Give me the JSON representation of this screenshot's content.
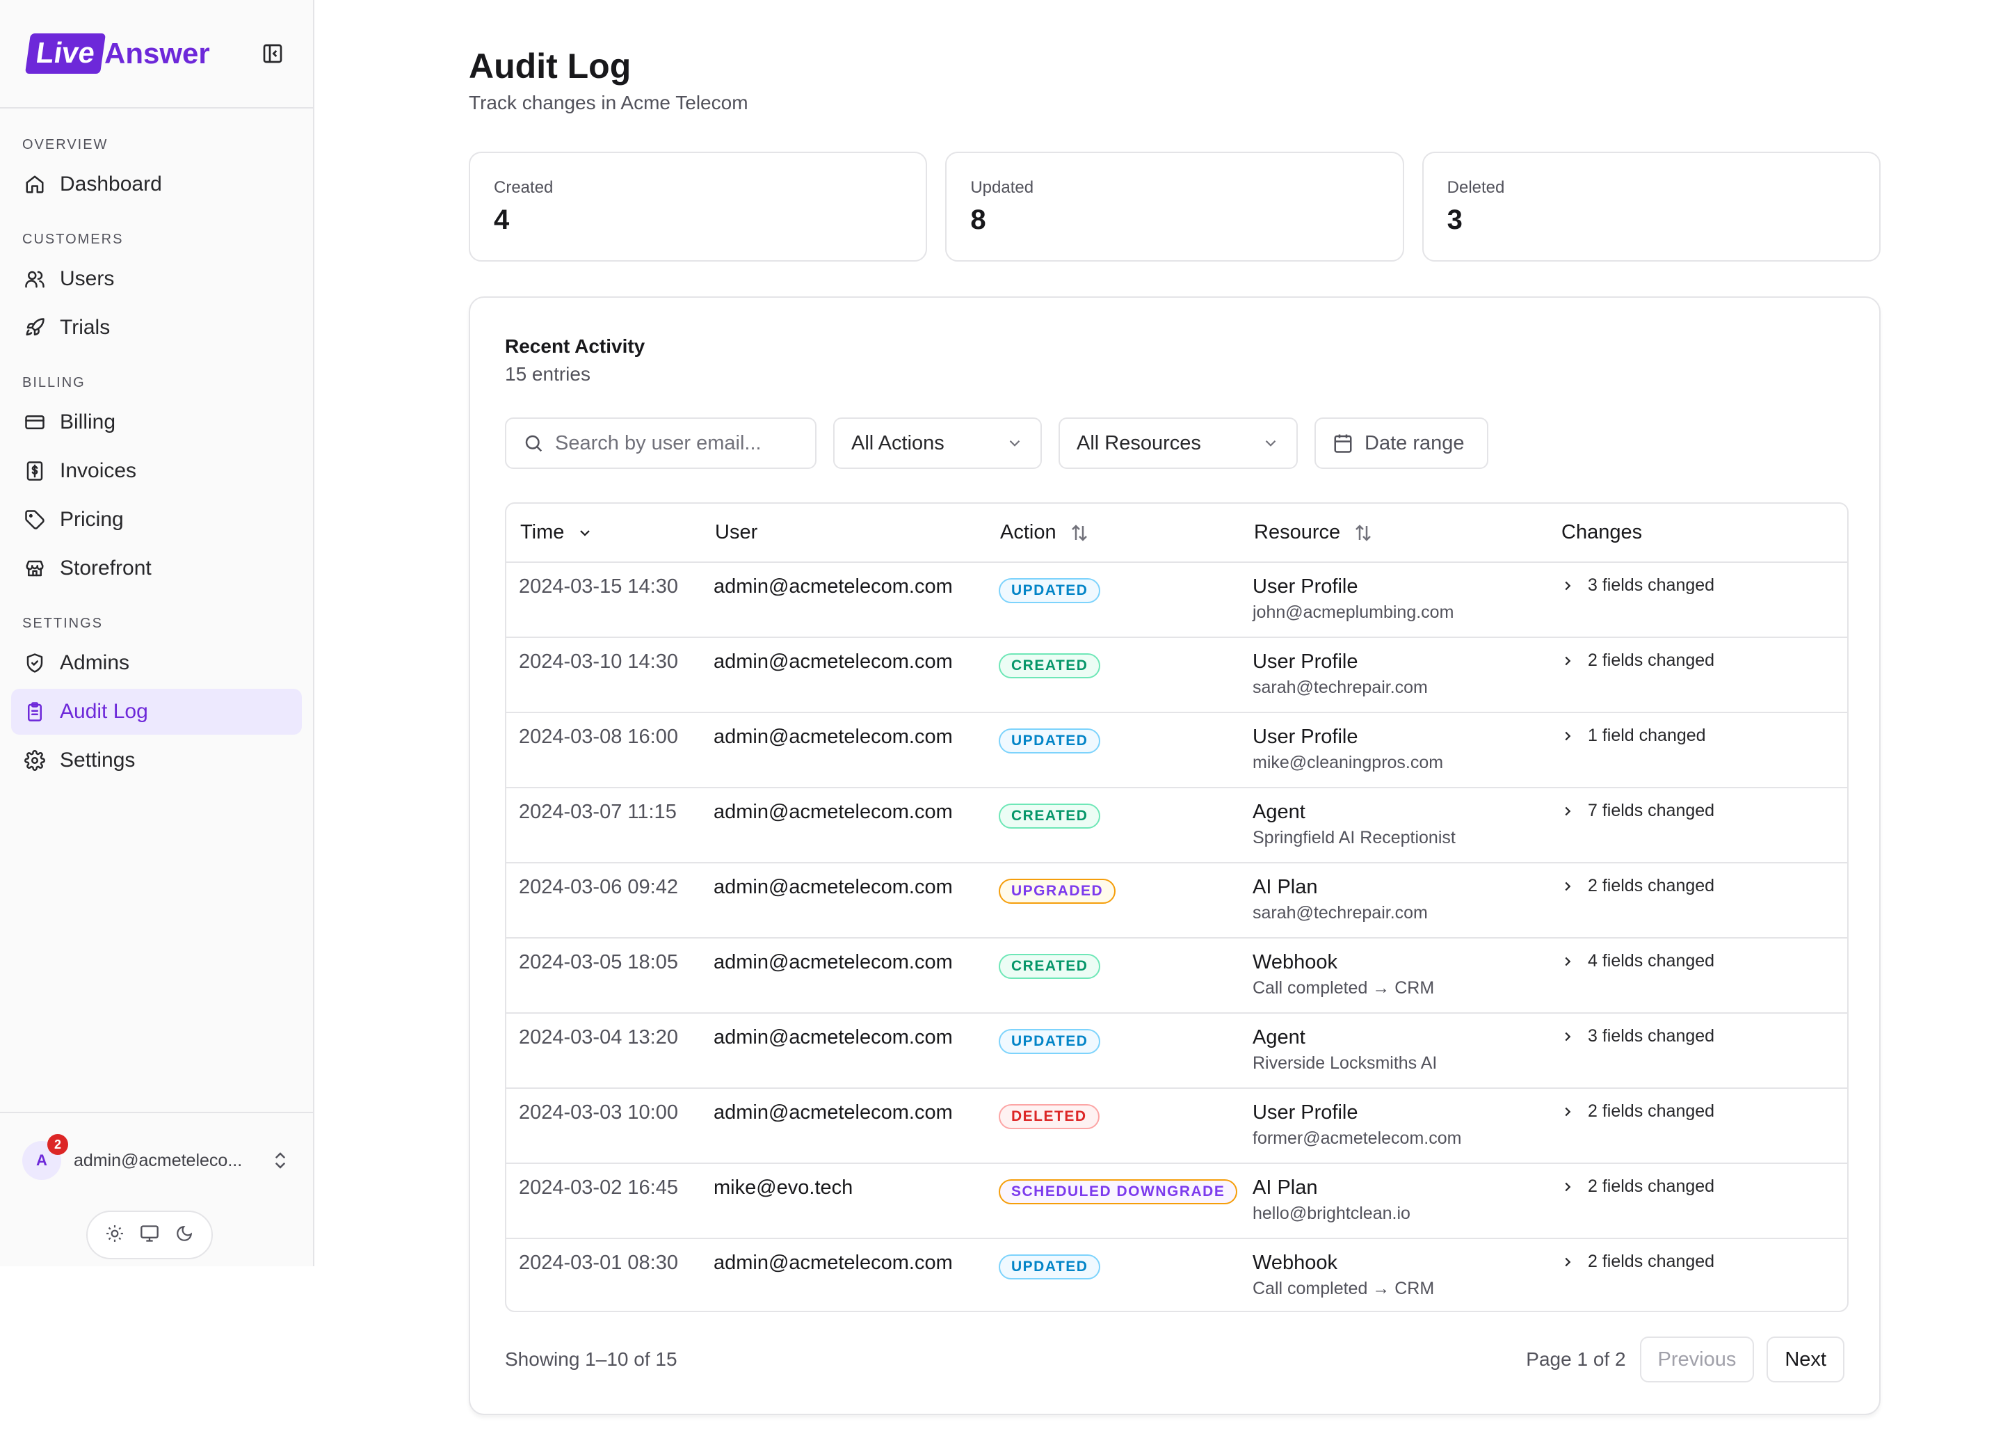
{
  "brand": {
    "name_part1": "Live",
    "name_part2": "Answer",
    "accent": "#6d28d9"
  },
  "sidebar": {
    "sections": [
      {
        "label": "OVERVIEW",
        "items": [
          {
            "label": "Dashboard",
            "icon": "home-icon"
          }
        ]
      },
      {
        "label": "CUSTOMERS",
        "items": [
          {
            "label": "Users",
            "icon": "users-icon"
          },
          {
            "label": "Trials",
            "icon": "rocket-icon"
          }
        ]
      },
      {
        "label": "BILLING",
        "items": [
          {
            "label": "Billing",
            "icon": "credit-card-icon"
          },
          {
            "label": "Invoices",
            "icon": "dollar-file-icon"
          },
          {
            "label": "Pricing",
            "icon": "tag-icon"
          },
          {
            "label": "Storefront",
            "icon": "store-icon"
          }
        ]
      },
      {
        "label": "SETTINGS",
        "items": [
          {
            "label": "Admins",
            "icon": "shield-icon"
          },
          {
            "label": "Audit Log",
            "icon": "clipboard-icon",
            "active": true
          },
          {
            "label": "Settings",
            "icon": "gear-icon"
          }
        ]
      }
    ],
    "user": {
      "initial": "A",
      "badge": "2",
      "email": "admin@acmeteleco..."
    }
  },
  "header": {
    "title": "Audit Log",
    "subtitle": "Track changes in Acme Telecom"
  },
  "stats": [
    {
      "label": "Created",
      "value": "4"
    },
    {
      "label": "Updated",
      "value": "8"
    },
    {
      "label": "Deleted",
      "value": "3"
    }
  ],
  "activity": {
    "title": "Recent Activity",
    "subtitle": "15 entries",
    "search_placeholder": "Search by user email...",
    "action_filter": "All Actions",
    "resource_filter": "All Resources",
    "date_filter": "Date range",
    "columns": {
      "time": "Time",
      "user": "User",
      "action": "Action",
      "resource": "Resource",
      "changes": "Changes"
    },
    "rows": [
      {
        "time": "2024-03-15 14:30",
        "user": "admin@acmetelecom.com",
        "action": "UPDATED",
        "kind": "updated",
        "resource": "User Profile",
        "resource_sub": "john@acmeplumbing.com",
        "changes": "3 fields changed"
      },
      {
        "time": "2024-03-10 14:30",
        "user": "admin@acmetelecom.com",
        "action": "CREATED",
        "kind": "created",
        "resource": "User Profile",
        "resource_sub": "sarah@techrepair.com",
        "changes": "2 fields changed"
      },
      {
        "time": "2024-03-08 16:00",
        "user": "admin@acmetelecom.com",
        "action": "UPDATED",
        "kind": "updated",
        "resource": "User Profile",
        "resource_sub": "mike@cleaningpros.com",
        "changes": "1 field changed"
      },
      {
        "time": "2024-03-07 11:15",
        "user": "admin@acmetelecom.com",
        "action": "CREATED",
        "kind": "created",
        "resource": "Agent",
        "resource_sub": "Springfield AI Receptionist",
        "changes": "7 fields changed"
      },
      {
        "time": "2024-03-06 09:42",
        "user": "admin@acmetelecom.com",
        "action": "UPGRADED",
        "kind": "upgraded",
        "resource": "AI Plan",
        "resource_sub": "sarah@techrepair.com",
        "changes": "2 fields changed"
      },
      {
        "time": "2024-03-05 18:05",
        "user": "admin@acmetelecom.com",
        "action": "CREATED",
        "kind": "created",
        "resource": "Webhook",
        "resource_sub": "Call completed → CRM",
        "changes": "4 fields changed"
      },
      {
        "time": "2024-03-04 13:20",
        "user": "admin@acmetelecom.com",
        "action": "UPDATED",
        "kind": "updated",
        "resource": "Agent",
        "resource_sub": "Riverside Locksmiths AI",
        "changes": "3 fields changed"
      },
      {
        "time": "2024-03-03 10:00",
        "user": "admin@acmetelecom.com",
        "action": "DELETED",
        "kind": "deleted",
        "resource": "User Profile",
        "resource_sub": "former@acmetelecom.com",
        "changes": "2 fields changed"
      },
      {
        "time": "2024-03-02 16:45",
        "user": "mike@evo.tech",
        "action": "SCHEDULED DOWNGRADE",
        "kind": "scheduled",
        "resource": "AI Plan",
        "resource_sub": "hello@brightclean.io",
        "changes": "2 fields changed"
      },
      {
        "time": "2024-03-01 08:30",
        "user": "admin@acmetelecom.com",
        "action": "UPDATED",
        "kind": "updated",
        "resource": "Webhook",
        "resource_sub": "Call completed → CRM",
        "changes": "2 fields changed"
      }
    ],
    "showing": "Showing 1–10 of 15",
    "page_info": "Page 1 of 2",
    "prev_label": "Previous",
    "next_label": "Next"
  }
}
